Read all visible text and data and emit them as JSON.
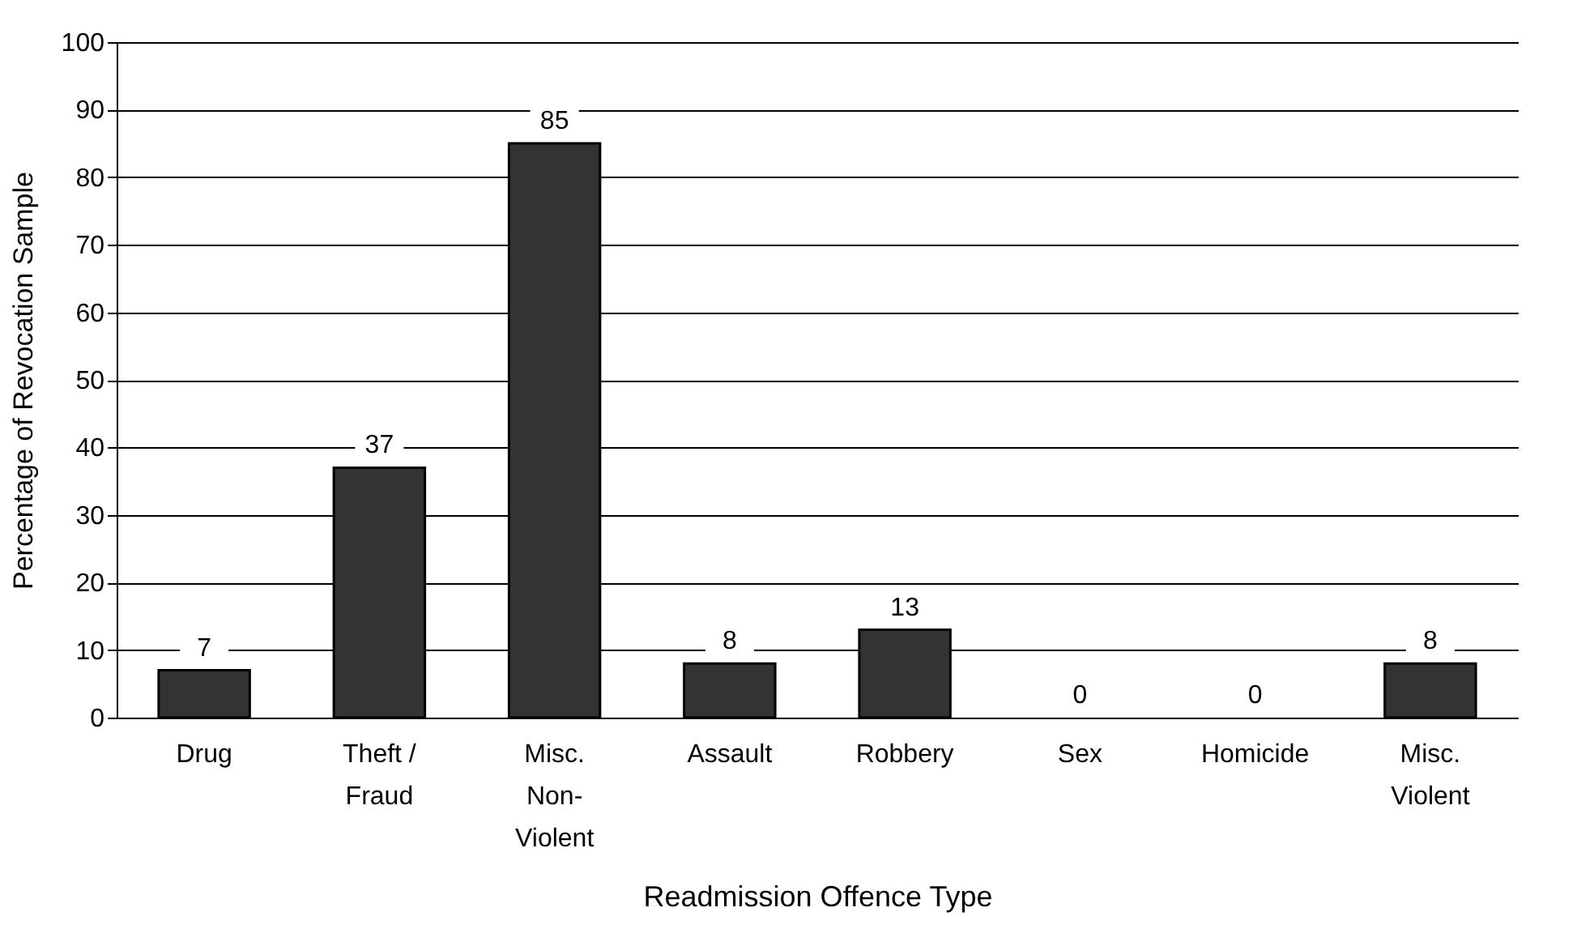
{
  "chart_data": {
    "type": "bar",
    "xlabel": "Readmission Offence Type",
    "ylabel": "Percentage of Revocation Sample",
    "categories": [
      "Drug",
      "Theft / Fraud",
      "Misc. Non-Violent",
      "Assault",
      "Robbery",
      "Sex",
      "Homicide",
      "Misc. Violent"
    ],
    "values": [
      7,
      37,
      85,
      8,
      13,
      0,
      0,
      8
    ],
    "color": "#333333",
    "ylim": [
      0,
      100
    ],
    "yticks": [
      0,
      10,
      20,
      30,
      40,
      50,
      60,
      70,
      80,
      90,
      100
    ],
    "grid": "y",
    "data_labels": true
  }
}
